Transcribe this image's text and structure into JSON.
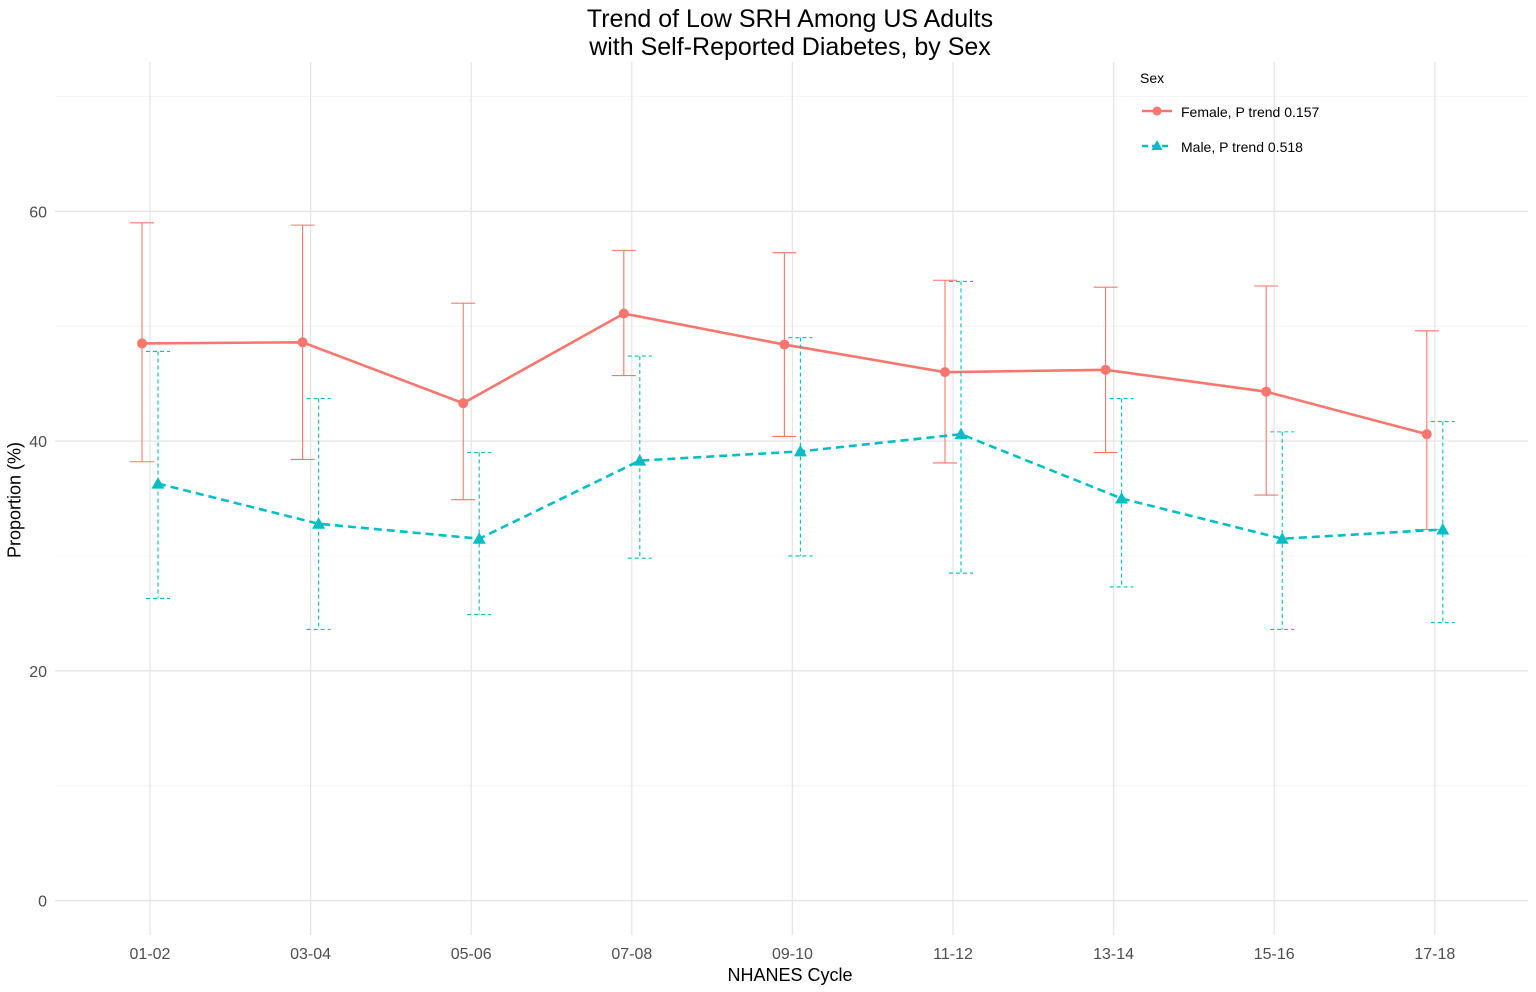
{
  "chart_data": {
    "type": "line",
    "title": "Trend of Low SRH Among US Adults",
    "subtitle": "with Self-Reported Diabetes, by Sex",
    "xlabel": "NHANES Cycle",
    "ylabel": "Proportion (%)",
    "categories": [
      "01-02",
      "03-04",
      "05-06",
      "07-08",
      "09-10",
      "11-12",
      "13-14",
      "15-16",
      "17-18"
    ],
    "ylim": [
      -3,
      73
    ],
    "yticks": [
      0,
      20,
      40,
      60
    ],
    "grid": true,
    "legend": {
      "title": "Sex",
      "position": "top-right"
    },
    "series": [
      {
        "name": "Female, P trend 0.157",
        "color": "#F8766D",
        "marker": "circle",
        "linestyle": "solid",
        "values": [
          48.5,
          48.6,
          43.3,
          51.1,
          48.4,
          46.0,
          46.2,
          44.3,
          40.6
        ],
        "lower": [
          38.2,
          38.4,
          34.9,
          45.7,
          40.4,
          38.1,
          39.0,
          35.3,
          32.3
        ],
        "upper": [
          59.0,
          58.8,
          52.0,
          56.6,
          56.4,
          54.0,
          53.4,
          53.5,
          49.6
        ]
      },
      {
        "name": "Male, P trend 0.518",
        "color": "#00BFC4",
        "marker": "triangle",
        "linestyle": "dashed",
        "values": [
          36.3,
          32.8,
          31.5,
          38.3,
          39.1,
          40.6,
          35.0,
          31.5,
          32.3
        ],
        "lower": [
          26.3,
          23.6,
          24.9,
          29.8,
          30.0,
          28.5,
          27.3,
          23.6,
          24.2
        ],
        "upper": [
          47.8,
          43.7,
          39.0,
          47.4,
          49.0,
          53.9,
          43.7,
          40.8,
          41.7
        ]
      }
    ]
  }
}
